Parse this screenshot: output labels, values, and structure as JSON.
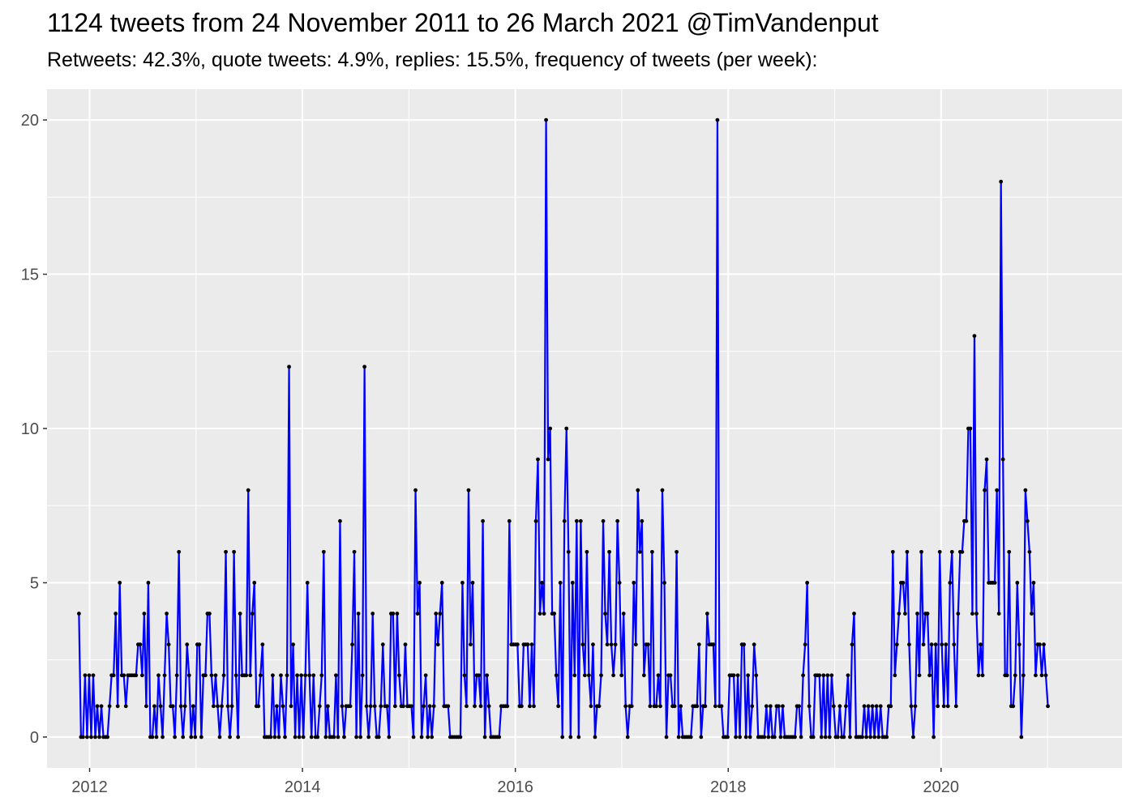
{
  "header": {
    "title": "1124 tweets from 24 November 2011 to 26 March 2021 @TimVandenput",
    "subtitle": "Retweets: 42.3%, quote tweets: 4.9%, replies: 15.5%, frequency of tweets (per week):"
  },
  "colors": {
    "line": "#0000ff",
    "point": "#000000",
    "panel": "#ebebeb",
    "grid": "#ffffff",
    "tick_text": "#4d4d4d"
  },
  "chart_data": {
    "type": "line",
    "title": "1124 tweets from 24 November 2011 to 26 March 2021 @TimVandenput",
    "subtitle": "Retweets: 42.3%, quote tweets: 4.9%, replies: 15.5%, frequency of tweets (per week):",
    "xlabel": "",
    "ylabel": "",
    "x_unit": "year",
    "xlim": [
      2011.6,
      2021.7
    ],
    "ylim": [
      -1,
      21
    ],
    "x_ticks": [
      2012,
      2014,
      2016,
      2018,
      2020
    ],
    "x_tick_labels": [
      "2012",
      "2014",
      "2016",
      "2018",
      "2020"
    ],
    "y_ticks": [
      0,
      5,
      10,
      15,
      20
    ],
    "y_tick_labels": [
      "0",
      "5",
      "10",
      "15",
      "20"
    ],
    "grid": true,
    "legend": "none",
    "series": [
      {
        "x_start": 2011.9,
        "x_step_weeks": 1,
        "values": [
          4,
          0,
          0,
          2,
          0,
          2,
          0,
          2,
          0,
          1,
          0,
          1,
          0,
          0,
          0,
          1,
          2,
          2,
          4,
          1,
          5,
          2,
          2,
          1,
          2,
          2,
          2,
          2,
          2,
          3,
          3,
          2,
          4,
          1,
          5,
          0,
          0,
          1,
          0,
          2,
          1,
          0,
          2,
          4,
          3,
          1,
          1,
          0,
          2,
          6,
          1,
          0,
          1,
          3,
          2,
          0,
          1,
          0,
          3,
          3,
          0,
          2,
          2,
          4,
          4,
          2,
          1,
          2,
          1,
          0,
          1,
          2,
          6,
          1,
          0,
          1,
          6,
          2,
          0,
          4,
          2,
          2,
          2,
          8,
          2,
          4,
          5,
          1,
          1,
          2,
          3,
          0,
          0,
          0,
          0,
          2,
          0,
          1,
          0,
          2,
          1,
          0,
          2,
          12,
          1,
          3,
          0,
          2,
          0,
          2,
          0,
          2,
          5,
          2,
          0,
          2,
          0,
          0,
          1,
          2,
          6,
          0,
          1,
          0,
          0,
          0,
          2,
          0,
          7,
          1,
          0,
          1,
          1,
          1,
          3,
          6,
          0,
          4,
          0,
          2,
          12,
          1,
          0,
          1,
          4,
          1,
          0,
          0,
          1,
          3,
          1,
          1,
          0,
          4,
          4,
          1,
          4,
          2,
          1,
          1,
          3,
          1,
          1,
          1,
          0,
          8,
          4,
          5,
          0,
          1,
          2,
          0,
          1,
          0,
          1,
          4,
          3,
          4,
          5,
          1,
          1,
          1,
          0,
          0,
          0,
          0,
          0,
          0,
          5,
          2,
          1,
          8,
          3,
          5,
          1,
          2,
          2,
          1,
          7,
          0,
          2,
          1,
          0,
          0,
          0,
          0,
          0,
          1,
          1,
          1,
          1,
          7,
          3,
          3,
          3,
          3,
          1,
          1,
          3,
          3,
          3,
          1,
          3,
          1,
          7,
          9,
          4,
          5,
          4,
          20,
          9,
          10,
          4,
          4,
          2,
          1,
          5,
          0,
          7,
          10,
          6,
          0,
          5,
          2,
          7,
          0,
          7,
          3,
          2,
          6,
          2,
          1,
          3,
          0,
          1,
          1,
          2,
          7,
          4,
          3,
          6,
          3,
          2,
          3,
          7,
          5,
          2,
          4,
          1,
          0,
          1,
          1,
          5,
          3,
          8,
          6,
          7,
          2,
          3,
          3,
          1,
          6,
          1,
          1,
          2,
          1,
          8,
          5,
          0,
          2,
          2,
          1,
          1,
          6,
          0,
          1,
          0,
          0,
          0,
          0,
          0,
          1,
          1,
          1,
          3,
          0,
          1,
          1,
          4,
          3,
          3,
          3,
          1,
          20,
          1,
          1,
          0,
          0,
          0,
          2,
          2,
          2,
          0,
          2,
          0,
          3,
          3,
          0,
          2,
          0,
          1,
          3,
          2,
          0,
          0,
          0,
          0,
          1,
          0,
          1,
          0,
          0,
          1,
          1,
          0,
          1,
          0,
          0,
          0,
          0,
          0,
          0,
          1,
          1,
          0,
          2,
          3,
          5,
          1,
          0,
          0,
          2,
          2,
          2,
          0,
          2,
          0,
          2,
          0,
          2,
          1,
          0,
          0,
          1,
          0,
          0,
          1,
          2,
          0,
          3,
          4,
          0,
          0,
          0,
          0,
          1,
          0,
          1,
          0,
          1,
          0,
          1,
          0,
          1,
          0,
          0,
          0,
          1,
          1,
          6,
          2,
          3,
          4,
          5,
          5,
          4,
          6,
          3,
          1,
          0,
          1,
          4,
          2,
          6,
          3,
          4,
          4,
          2,
          3,
          0,
          3,
          1,
          6,
          3,
          1,
          3,
          1,
          5,
          6,
          3,
          1,
          4,
          6,
          6,
          7,
          7,
          10,
          10,
          4,
          13,
          4,
          2,
          3,
          2,
          8,
          9,
          5,
          5,
          5,
          5,
          8,
          4,
          18,
          9,
          2,
          2,
          6,
          1,
          1,
          2,
          5,
          3,
          0,
          2,
          8,
          7,
          6,
          4,
          5,
          2,
          3,
          3,
          2,
          3,
          2,
          1
        ]
      }
    ]
  }
}
